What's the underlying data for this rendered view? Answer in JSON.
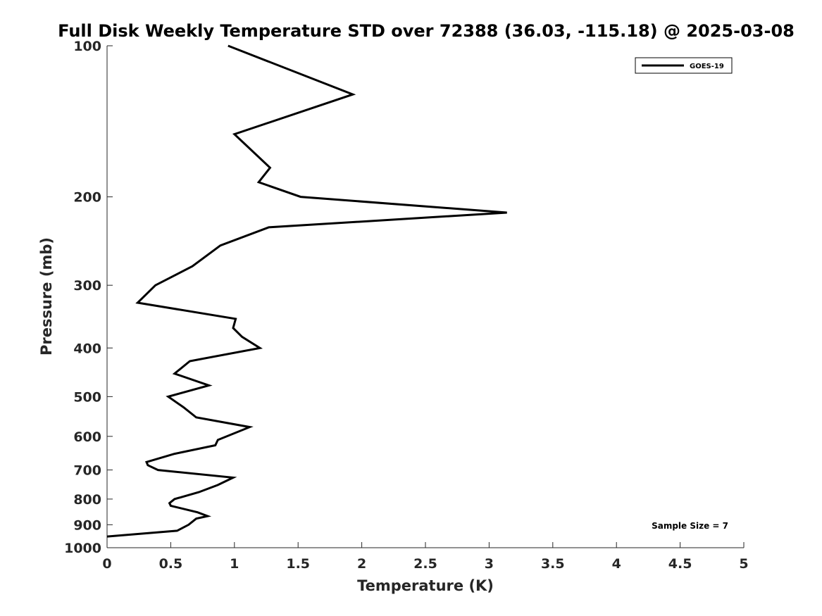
{
  "chart_data": {
    "type": "line",
    "title": "Full Disk Weekly Temperature STD over 72388 (36.03, -115.18) @ 2025-03-08",
    "xlabel": "Temperature (K)",
    "ylabel": "Pressure (mb)",
    "xlim": [
      0,
      5
    ],
    "ylim": [
      100,
      1000
    ],
    "y_scale": "log",
    "y_reversed": true,
    "x_ticks": [
      "0",
      "0.5",
      "1",
      "1.5",
      "2",
      "2.5",
      "3",
      "3.5",
      "4",
      "4.5",
      "5"
    ],
    "y_ticks": [
      "100",
      "200",
      "300",
      "400",
      "500",
      "600",
      "700",
      "800",
      "900",
      "1000"
    ],
    "grid": false,
    "legend_position": "top-right",
    "annotation": "Sample Size = 7",
    "series": [
      {
        "name": "GOES-19",
        "color": "#000000",
        "x": [
          0.95,
          1.93,
          1.0,
          1.28,
          1.19,
          1.52,
          3.14,
          1.27,
          0.89,
          0.67,
          0.38,
          0.24,
          1.01,
          0.99,
          1.06,
          1.2,
          0.65,
          0.53,
          0.8,
          0.48,
          0.6,
          0.7,
          1.12,
          0.87,
          0.85,
          0.53,
          0.31,
          0.32,
          0.4,
          0.99,
          0.87,
          0.72,
          0.53,
          0.49,
          0.5,
          0.71,
          0.79,
          0.7,
          0.64,
          0.55,
          0.0
        ],
        "y": [
          100,
          125,
          150,
          175,
          187,
          200,
          215,
          230,
          250,
          275,
          300,
          325,
          350,
          365,
          380,
          400,
          425,
          450,
          475,
          500,
          525,
          550,
          575,
          610,
          625,
          650,
          675,
          685,
          700,
          725,
          750,
          775,
          800,
          815,
          825,
          850,
          865,
          875,
          900,
          925,
          950
        ]
      }
    ]
  }
}
